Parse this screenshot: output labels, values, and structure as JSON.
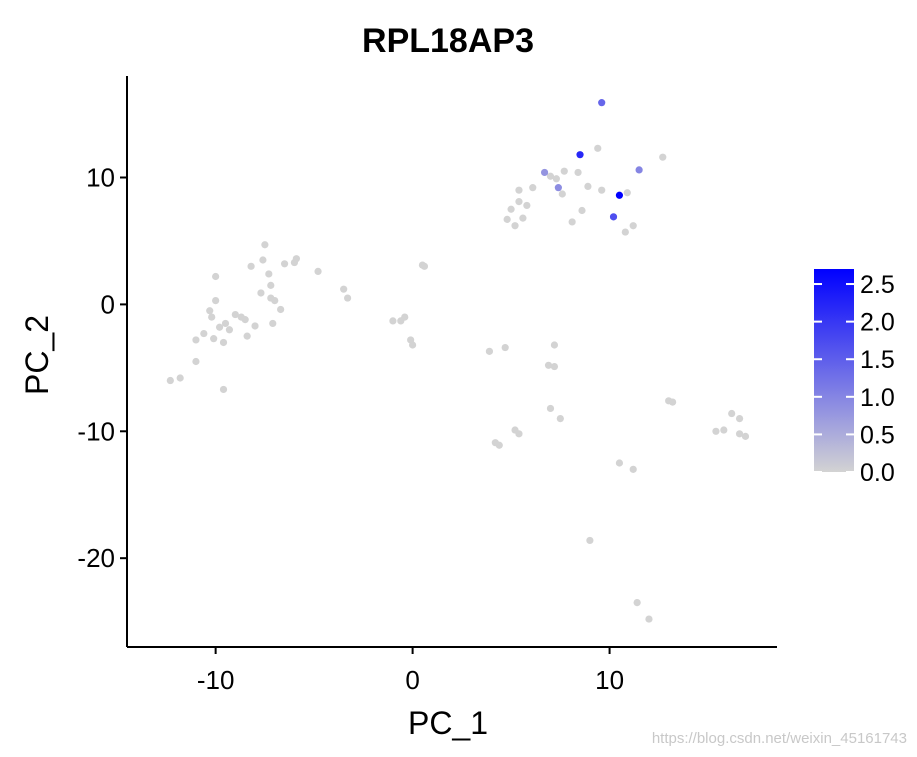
{
  "watermark": "https://blog.csdn.net/weixin_45161743",
  "chart_data": {
    "type": "scatter",
    "title": "RPL18AP3",
    "xlabel": "PC_1",
    "ylabel": "PC_2",
    "xlim": [
      -14.5,
      18.5
    ],
    "ylim": [
      -27,
      18
    ],
    "xticks": [
      -10,
      0,
      10
    ],
    "yticks": [
      -20,
      -10,
      0,
      10
    ],
    "grid": false,
    "colorbar": {
      "low_color": "#d3d3d3",
      "high_color": "#0000ff",
      "range": [
        0,
        2.7
      ],
      "ticks": [
        0.0,
        0.5,
        1.0,
        1.5,
        2.0,
        2.5
      ],
      "tick_labels": [
        "0.0",
        "0.5",
        "1.0",
        "1.5",
        "2.0",
        "2.5"
      ],
      "placement": "right"
    },
    "points": [
      [
        -12.3,
        -6.0,
        0
      ],
      [
        -11.8,
        -5.8,
        0
      ],
      [
        -11.0,
        -4.5,
        0
      ],
      [
        -11.0,
        -2.8,
        0
      ],
      [
        -10.6,
        -2.3,
        0
      ],
      [
        -10.3,
        -0.5,
        0
      ],
      [
        -10.2,
        -1.0,
        0
      ],
      [
        -10.0,
        0.3,
        0
      ],
      [
        -10.1,
        -2.7,
        0
      ],
      [
        -10.0,
        2.2,
        0
      ],
      [
        -9.8,
        -1.8,
        0
      ],
      [
        -9.6,
        -3.0,
        0
      ],
      [
        -9.5,
        -1.5,
        0
      ],
      [
        -9.6,
        -6.7,
        0
      ],
      [
        -9.3,
        -2.0,
        0
      ],
      [
        -9.0,
        -0.8,
        0
      ],
      [
        -8.7,
        -1.0,
        0
      ],
      [
        -8.5,
        -1.2,
        0
      ],
      [
        -8.4,
        -2.5,
        0
      ],
      [
        -8.2,
        3.0,
        0
      ],
      [
        -8.0,
        -1.7,
        0
      ],
      [
        -7.6,
        3.5,
        0
      ],
      [
        -7.7,
        0.9,
        0
      ],
      [
        -7.5,
        4.7,
        0
      ],
      [
        -7.2,
        0.5,
        0
      ],
      [
        -7.2,
        1.5,
        0
      ],
      [
        -7.1,
        -1.5,
        0
      ],
      [
        -7.3,
        2.4,
        0
      ],
      [
        -7.0,
        0.3,
        0
      ],
      [
        -6.7,
        -0.4,
        0
      ],
      [
        -6.5,
        3.2,
        0
      ],
      [
        -6.0,
        3.3,
        0
      ],
      [
        -5.9,
        3.6,
        0
      ],
      [
        -4.8,
        2.6,
        0
      ],
      [
        -3.5,
        1.2,
        0
      ],
      [
        -3.3,
        0.5,
        0
      ],
      [
        -1.0,
        -1.3,
        0
      ],
      [
        -0.6,
        -1.3,
        0
      ],
      [
        -0.4,
        -1.0,
        0
      ],
      [
        -0.1,
        -2.8,
        0
      ],
      [
        0.0,
        -3.2,
        0
      ],
      [
        0.5,
        3.1,
        0
      ],
      [
        0.6,
        3.0,
        0
      ],
      [
        3.9,
        -3.7,
        0
      ],
      [
        4.2,
        -10.9,
        0
      ],
      [
        4.4,
        -11.1,
        0
      ],
      [
        4.7,
        -3.4,
        0
      ],
      [
        4.8,
        6.7,
        0
      ],
      [
        5.0,
        7.5,
        0
      ],
      [
        5.2,
        6.2,
        0
      ],
      [
        5.2,
        -9.9,
        0
      ],
      [
        5.4,
        -10.2,
        0
      ],
      [
        5.4,
        8.1,
        0
      ],
      [
        5.6,
        6.8,
        0
      ],
      [
        5.4,
        9.0,
        0
      ],
      [
        5.8,
        7.8,
        0
      ],
      [
        6.1,
        9.2,
        0
      ],
      [
        6.7,
        10.4,
        0.8
      ],
      [
        6.9,
        -4.8,
        0
      ],
      [
        7.0,
        10.1,
        0
      ],
      [
        7.0,
        -8.2,
        0
      ],
      [
        7.2,
        -4.9,
        0
      ],
      [
        7.2,
        -3.2,
        0
      ],
      [
        7.3,
        9.9,
        0
      ],
      [
        7.4,
        9.2,
        0.9
      ],
      [
        7.5,
        -9.0,
        0
      ],
      [
        7.6,
        8.7,
        0
      ],
      [
        7.7,
        10.5,
        0
      ],
      [
        8.1,
        6.5,
        0
      ],
      [
        8.4,
        10.4,
        0
      ],
      [
        8.5,
        11.8,
        2.2
      ],
      [
        8.6,
        7.4,
        0
      ],
      [
        8.9,
        9.3,
        0
      ],
      [
        9.0,
        -18.6,
        0
      ],
      [
        9.4,
        12.3,
        0
      ],
      [
        9.6,
        15.9,
        1.4
      ],
      [
        9.6,
        9.0,
        0
      ],
      [
        10.2,
        6.9,
        1.7
      ],
      [
        10.5,
        8.6,
        2.7
      ],
      [
        10.5,
        -12.5,
        0
      ],
      [
        10.8,
        5.7,
        0
      ],
      [
        10.9,
        8.8,
        0
      ],
      [
        11.2,
        6.2,
        0
      ],
      [
        11.2,
        -13.0,
        0
      ],
      [
        11.5,
        10.6,
        1.0
      ],
      [
        11.4,
        -23.5,
        0
      ],
      [
        12.0,
        -24.8,
        0
      ],
      [
        12.7,
        11.6,
        0
      ],
      [
        13.0,
        -7.6,
        0
      ],
      [
        13.2,
        -7.7,
        0
      ],
      [
        15.4,
        -10.0,
        0
      ],
      [
        15.8,
        -9.9,
        0
      ],
      [
        16.2,
        -8.6,
        0
      ],
      [
        16.6,
        -9.0,
        0
      ],
      [
        16.6,
        -10.2,
        0
      ],
      [
        16.9,
        -10.4,
        0
      ]
    ]
  }
}
